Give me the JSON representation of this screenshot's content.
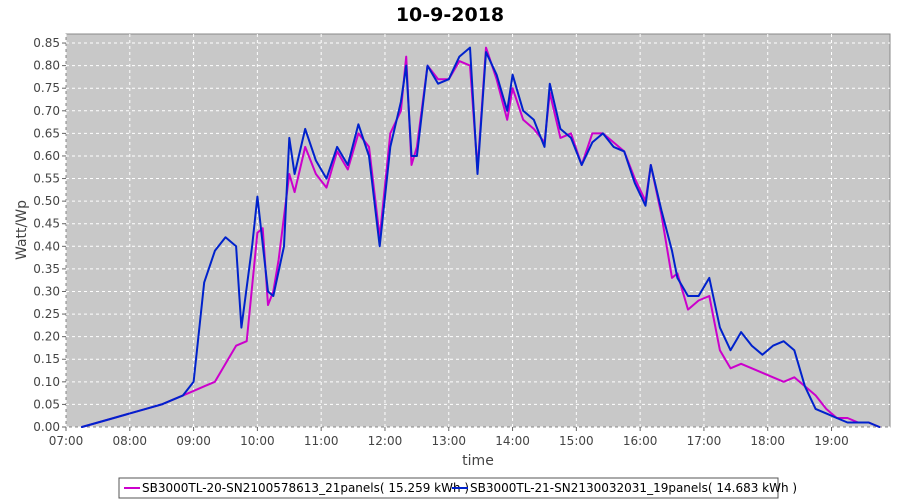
{
  "chart_data": {
    "type": "line",
    "title": "10-9-2018",
    "xlabel": "time",
    "ylabel": "Watt/Wp",
    "xlim": [
      "07:00",
      "19:55"
    ],
    "ylim": [
      0,
      0.87
    ],
    "grid": true,
    "legend_position": "bottom",
    "x_ticks": [
      "07:00",
      "08:00",
      "09:00",
      "10:00",
      "11:00",
      "12:00",
      "13:00",
      "14:00",
      "15:00",
      "16:00",
      "17:00",
      "18:00",
      "19:00"
    ],
    "y_ticks": [
      "0.00",
      "0.05",
      "0.10",
      "0.15",
      "0.20",
      "0.25",
      "0.30",
      "0.35",
      "0.40",
      "0.45",
      "0.50",
      "0.55",
      "0.60",
      "0.65",
      "0.70",
      "0.75",
      "0.80",
      "0.85"
    ],
    "series": [
      {
        "name": "SB3000TL-20-SN2100578613_21panels( 15.259 kWh )",
        "color": "#cc00cc",
        "points": [
          [
            "07:15",
            0.0
          ],
          [
            "07:30",
            0.01
          ],
          [
            "07:45",
            0.02
          ],
          [
            "08:00",
            0.03
          ],
          [
            "08:15",
            0.04
          ],
          [
            "08:30",
            0.05
          ],
          [
            "08:40",
            0.06
          ],
          [
            "08:50",
            0.07
          ],
          [
            "09:00",
            0.08
          ],
          [
            "09:10",
            0.09
          ],
          [
            "09:20",
            0.1
          ],
          [
            "09:30",
            0.14
          ],
          [
            "09:40",
            0.18
          ],
          [
            "09:50",
            0.19
          ],
          [
            "10:00",
            0.43
          ],
          [
            "10:05",
            0.44
          ],
          [
            "10:10",
            0.27
          ],
          [
            "10:15",
            0.3
          ],
          [
            "10:20",
            0.37
          ],
          [
            "10:30",
            0.56
          ],
          [
            "10:35",
            0.52
          ],
          [
            "10:45",
            0.62
          ],
          [
            "10:55",
            0.56
          ],
          [
            "11:05",
            0.53
          ],
          [
            "11:15",
            0.61
          ],
          [
            "11:25",
            0.57
          ],
          [
            "11:35",
            0.65
          ],
          [
            "11:45",
            0.62
          ],
          [
            "11:55",
            0.42
          ],
          [
            "12:05",
            0.65
          ],
          [
            "12:15",
            0.7
          ],
          [
            "12:20",
            0.82
          ],
          [
            "12:25",
            0.58
          ],
          [
            "12:30",
            0.62
          ],
          [
            "12:40",
            0.8
          ],
          [
            "12:50",
            0.77
          ],
          [
            "13:00",
            0.77
          ],
          [
            "13:10",
            0.81
          ],
          [
            "13:20",
            0.8
          ],
          [
            "13:27",
            0.57
          ],
          [
            "13:35",
            0.84
          ],
          [
            "13:45",
            0.77
          ],
          [
            "13:55",
            0.68
          ],
          [
            "14:00",
            0.75
          ],
          [
            "14:10",
            0.68
          ],
          [
            "14:20",
            0.66
          ],
          [
            "14:30",
            0.63
          ],
          [
            "14:35",
            0.74
          ],
          [
            "14:45",
            0.64
          ],
          [
            "14:55",
            0.65
          ],
          [
            "15:05",
            0.58
          ],
          [
            "15:15",
            0.65
          ],
          [
            "15:25",
            0.65
          ],
          [
            "15:35",
            0.63
          ],
          [
            "15:45",
            0.61
          ],
          [
            "15:55",
            0.55
          ],
          [
            "16:05",
            0.5
          ],
          [
            "16:10",
            0.58
          ],
          [
            "16:20",
            0.47
          ],
          [
            "16:30",
            0.33
          ],
          [
            "16:35",
            0.34
          ],
          [
            "16:45",
            0.26
          ],
          [
            "16:55",
            0.28
          ],
          [
            "17:05",
            0.29
          ],
          [
            "17:15",
            0.17
          ],
          [
            "17:25",
            0.13
          ],
          [
            "17:35",
            0.14
          ],
          [
            "17:45",
            0.13
          ],
          [
            "17:55",
            0.12
          ],
          [
            "18:05",
            0.11
          ],
          [
            "18:15",
            0.1
          ],
          [
            "18:25",
            0.11
          ],
          [
            "18:35",
            0.09
          ],
          [
            "18:45",
            0.07
          ],
          [
            "18:55",
            0.04
          ],
          [
            "19:05",
            0.02
          ],
          [
            "19:15",
            0.02
          ],
          [
            "19:25",
            0.01
          ],
          [
            "19:35",
            0.01
          ],
          [
            "19:45",
            0.0
          ]
        ]
      },
      {
        "name": "SB3000TL-21-SN2130032031_19panels( 14.683 kWh )",
        "color": "#0022cc",
        "points": [
          [
            "07:15",
            0.0
          ],
          [
            "07:30",
            0.01
          ],
          [
            "07:45",
            0.02
          ],
          [
            "08:00",
            0.03
          ],
          [
            "08:15",
            0.04
          ],
          [
            "08:30",
            0.05
          ],
          [
            "08:40",
            0.06
          ],
          [
            "08:50",
            0.07
          ],
          [
            "09:00",
            0.1
          ],
          [
            "09:10",
            0.32
          ],
          [
            "09:20",
            0.39
          ],
          [
            "09:30",
            0.42
          ],
          [
            "09:40",
            0.4
          ],
          [
            "09:45",
            0.22
          ],
          [
            "09:55",
            0.4
          ],
          [
            "10:00",
            0.51
          ],
          [
            "10:10",
            0.3
          ],
          [
            "10:15",
            0.29
          ],
          [
            "10:25",
            0.4
          ],
          [
            "10:30",
            0.64
          ],
          [
            "10:35",
            0.56
          ],
          [
            "10:45",
            0.66
          ],
          [
            "10:55",
            0.59
          ],
          [
            "11:05",
            0.55
          ],
          [
            "11:15",
            0.62
          ],
          [
            "11:25",
            0.58
          ],
          [
            "11:35",
            0.67
          ],
          [
            "11:45",
            0.6
          ],
          [
            "11:55",
            0.4
          ],
          [
            "12:05",
            0.62
          ],
          [
            "12:15",
            0.72
          ],
          [
            "12:20",
            0.8
          ],
          [
            "12:25",
            0.6
          ],
          [
            "12:30",
            0.6
          ],
          [
            "12:40",
            0.8
          ],
          [
            "12:50",
            0.76
          ],
          [
            "13:00",
            0.77
          ],
          [
            "13:10",
            0.82
          ],
          [
            "13:20",
            0.84
          ],
          [
            "13:27",
            0.56
          ],
          [
            "13:35",
            0.83
          ],
          [
            "13:45",
            0.78
          ],
          [
            "13:55",
            0.7
          ],
          [
            "14:00",
            0.78
          ],
          [
            "14:10",
            0.7
          ],
          [
            "14:20",
            0.68
          ],
          [
            "14:30",
            0.62
          ],
          [
            "14:35",
            0.76
          ],
          [
            "14:45",
            0.66
          ],
          [
            "14:55",
            0.64
          ],
          [
            "15:05",
            0.58
          ],
          [
            "15:15",
            0.63
          ],
          [
            "15:25",
            0.65
          ],
          [
            "15:35",
            0.62
          ],
          [
            "15:45",
            0.61
          ],
          [
            "15:55",
            0.54
          ],
          [
            "16:05",
            0.49
          ],
          [
            "16:10",
            0.58
          ],
          [
            "16:20",
            0.48
          ],
          [
            "16:30",
            0.39
          ],
          [
            "16:35",
            0.33
          ],
          [
            "16:45",
            0.29
          ],
          [
            "16:55",
            0.29
          ],
          [
            "17:05",
            0.33
          ],
          [
            "17:15",
            0.22
          ],
          [
            "17:25",
            0.17
          ],
          [
            "17:35",
            0.21
          ],
          [
            "17:45",
            0.18
          ],
          [
            "17:55",
            0.16
          ],
          [
            "18:05",
            0.18
          ],
          [
            "18:15",
            0.19
          ],
          [
            "18:25",
            0.17
          ],
          [
            "18:35",
            0.09
          ],
          [
            "18:45",
            0.04
          ],
          [
            "18:55",
            0.03
          ],
          [
            "19:05",
            0.02
          ],
          [
            "19:15",
            0.01
          ],
          [
            "19:25",
            0.01
          ],
          [
            "19:35",
            0.01
          ],
          [
            "19:45",
            0.0
          ]
        ]
      }
    ]
  }
}
